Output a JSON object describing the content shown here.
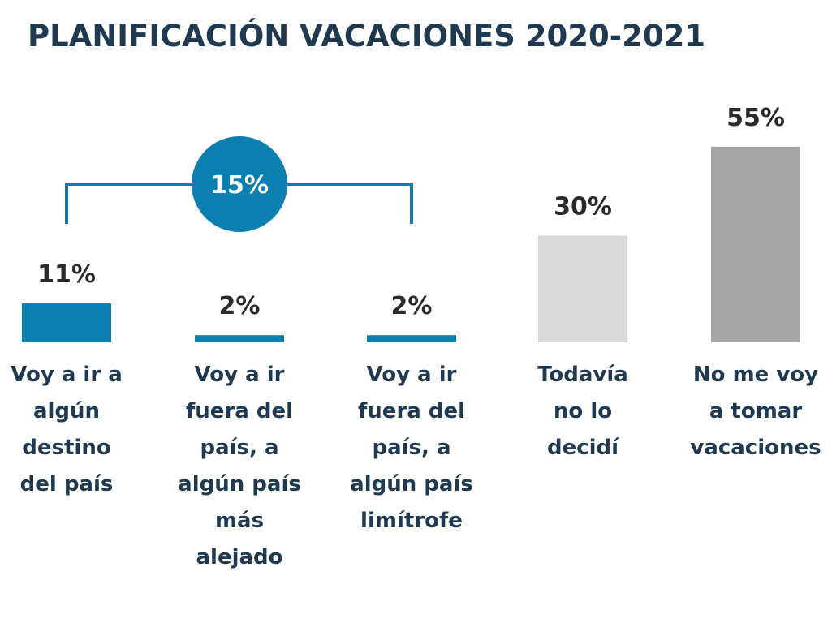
{
  "chart_data": {
    "type": "bar",
    "title": "PLANIFICACIÓN VACACIONES 2020-2021",
    "categories": [
      "Voy a ir a algún destino del país",
      "Voy a ir fuera del país, a algún país más alejado",
      "Voy a ir fuera del país, a algún país limítrofe",
      "Todavía no lo decidí",
      "No me voy a tomar vacaciones"
    ],
    "category_lines": [
      [
        "Voy a ir a",
        "algún",
        "destino",
        "del país"
      ],
      [
        "Voy a ir",
        "fuera del",
        "país, a",
        "algún país",
        "más",
        "alejado"
      ],
      [
        "Voy a ir",
        "fuera del",
        "país, a",
        "algún país",
        "limítrofe"
      ],
      [
        "Todavía",
        "no lo",
        "decidí"
      ],
      [
        "No me voy",
        "a tomar",
        "vacaciones"
      ]
    ],
    "values": [
      11,
      2,
      2,
      30,
      55
    ],
    "value_labels": [
      "11%",
      "2%",
      "2%",
      "30%",
      "55%"
    ],
    "bar_colors": [
      "#0b7fb0",
      "#0b7fb0",
      "#0b7fb0",
      "#d9d9d9",
      "#a6a6a6"
    ],
    "group": {
      "label": "15%",
      "value": 15,
      "members": [
        0,
        1,
        2
      ],
      "color": "#0b7fb0"
    },
    "ylim": [
      0,
      55
    ],
    "xlabel": "",
    "ylabel": "",
    "grid": false,
    "legend": "none"
  },
  "colors": {
    "title": "#1f3a50",
    "value_text": "#2a2a2a",
    "category_text": "#1f3a50",
    "accent": "#0b7fb0"
  }
}
